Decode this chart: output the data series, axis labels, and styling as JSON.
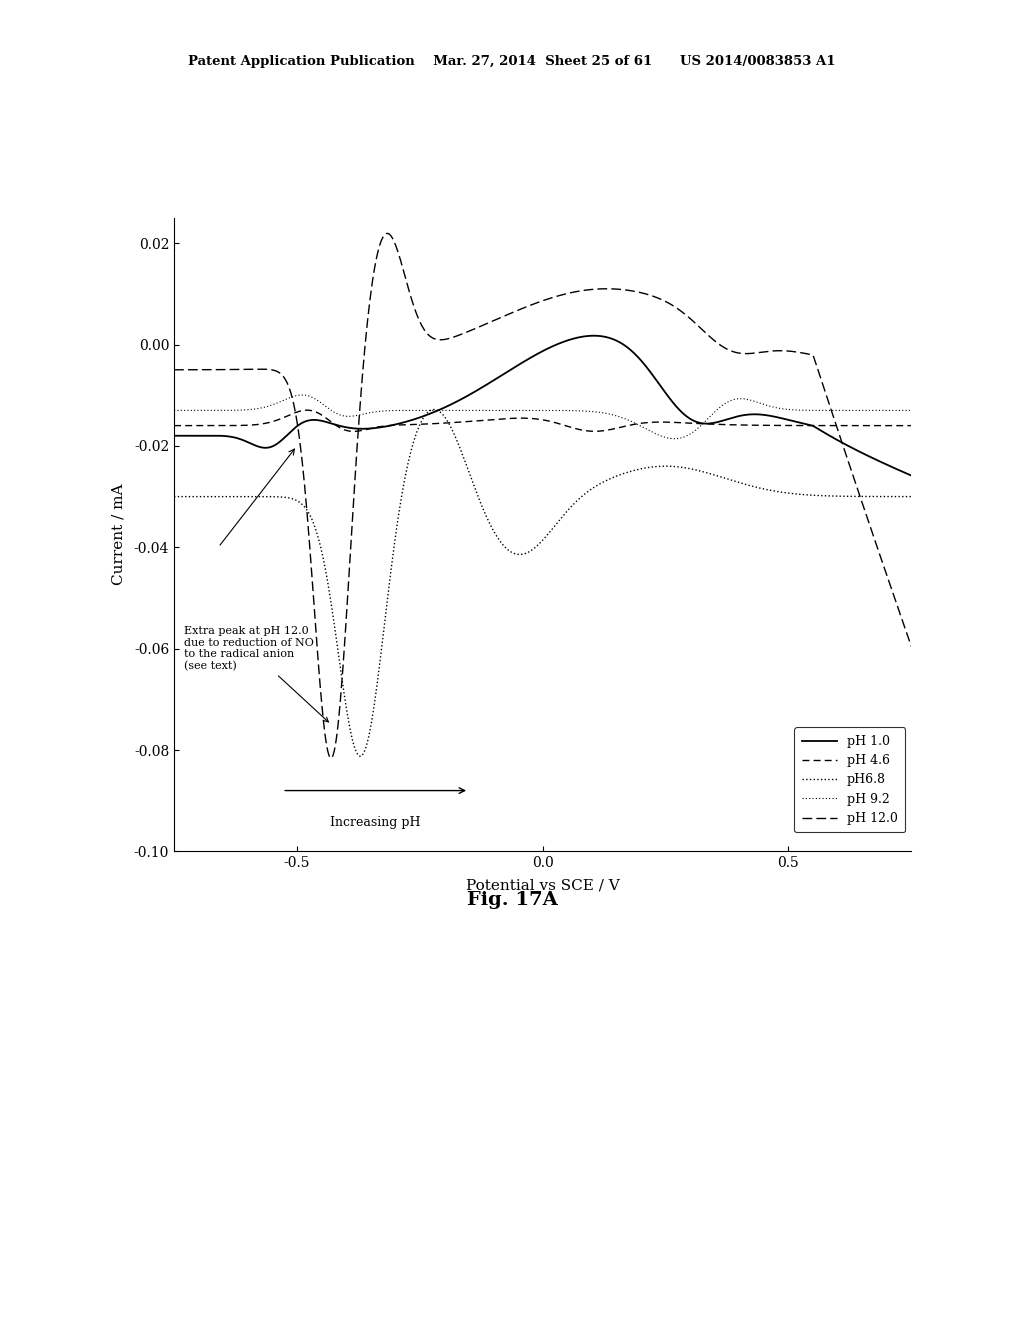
{
  "title_header": "Patent Application Publication    Mar. 27, 2014  Sheet 25 of 61      US 2014/0083853 A1",
  "fig_label": "Fig. 17A",
  "xlabel": "Potential vs SCE / V",
  "ylabel": "Current / mA",
  "xlim": [
    -0.75,
    0.75
  ],
  "ylim": [
    -0.1,
    0.025
  ],
  "yticks": [
    -0.1,
    -0.08,
    -0.06,
    -0.04,
    -0.02,
    0.0,
    0.02
  ],
  "xticks": [
    -0.5,
    0.0,
    0.5
  ],
  "annotation_text": "Extra peak at pH 12.0\ndue to reduction of NO\nto the radical anion\n(see text)",
  "arrow_label": "Increasing pH",
  "legend_entries": [
    "pH 1.0",
    "pH 4.6",
    "pH6.8",
    "pH 9.2",
    "pH 12.0"
  ],
  "background_color": "#ffffff"
}
